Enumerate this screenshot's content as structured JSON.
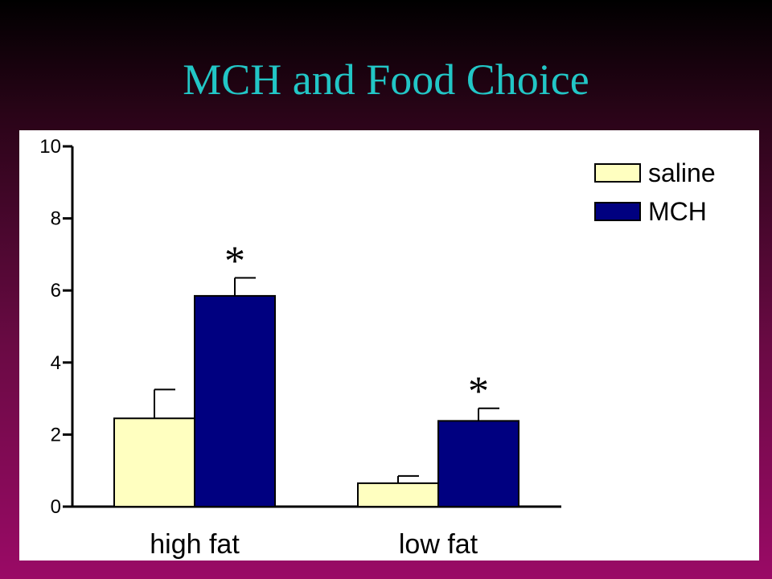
{
  "slide": {
    "title": "MCH and Food Choice"
  },
  "colors": {
    "saline": "#ffffc0",
    "mch": "#000080",
    "title": "#22c6c6"
  },
  "chart_data": {
    "type": "bar",
    "title": "",
    "xlabel": "",
    "ylabel": "",
    "categories": [
      "high fat",
      "low fat"
    ],
    "ylim": [
      0,
      10
    ],
    "yticks": [
      "0",
      "2",
      "4",
      "6",
      "8",
      "10"
    ],
    "grid": false,
    "legend_position": "top-right",
    "series": [
      {
        "name": "saline",
        "values": [
          2.45,
          0.65
        ],
        "errors": [
          0.8,
          0.2
        ],
        "significance": [
          "",
          ""
        ]
      },
      {
        "name": "MCH",
        "values": [
          5.85,
          2.38
        ],
        "errors": [
          0.5,
          0.35
        ],
        "significance": [
          "*",
          "*"
        ]
      }
    ]
  }
}
